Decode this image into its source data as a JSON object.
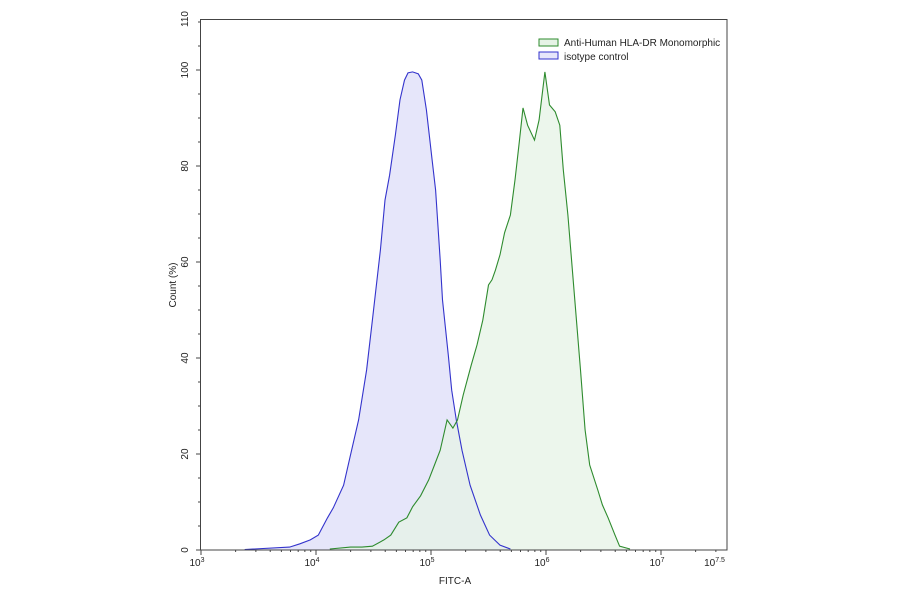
{
  "chart_data": {
    "type": "area",
    "title": "",
    "xlabel": "FITC-A",
    "ylabel": "Count (%)",
    "xscale": "log",
    "xlim_log10": [
      3,
      7.5
    ],
    "ylim": [
      0,
      110
    ],
    "x_ticks": [
      {
        "label_base": "10",
        "label_exp": "3",
        "log10": 3
      },
      {
        "label_base": "10",
        "label_exp": "4",
        "log10": 4
      },
      {
        "label_base": "10",
        "label_exp": "5",
        "log10": 5
      },
      {
        "label_base": "10",
        "label_exp": "6",
        "log10": 6
      },
      {
        "label_base": "10",
        "label_exp": "7",
        "log10": 7
      },
      {
        "label_base": "10",
        "label_exp": "7.5",
        "log10": 7.5
      }
    ],
    "y_ticks": [
      0,
      20,
      40,
      60,
      80,
      100,
      110
    ],
    "grid": false,
    "legend_position": "top-right",
    "series": [
      {
        "name": "Anti-Human HLA-DR Monomorphic",
        "line_color": "#2e8b2e",
        "fill_color": "#e6f3e6",
        "points_log10x_count": [
          [
            4.12,
            0.2
          ],
          [
            4.3,
            0.6
          ],
          [
            4.4,
            0.6
          ],
          [
            4.49,
            0.8
          ],
          [
            4.59,
            2.1
          ],
          [
            4.65,
            3.1
          ],
          [
            4.72,
            5.8
          ],
          [
            4.79,
            6.7
          ],
          [
            4.84,
            9.0
          ],
          [
            4.91,
            11.3
          ],
          [
            4.98,
            14.6
          ],
          [
            5.03,
            17.7
          ],
          [
            5.08,
            20.8
          ],
          [
            5.14,
            27.1
          ],
          [
            5.19,
            25.4
          ],
          [
            5.23,
            27.1
          ],
          [
            5.28,
            32.3
          ],
          [
            5.35,
            38.5
          ],
          [
            5.4,
            42.7
          ],
          [
            5.45,
            47.9
          ],
          [
            5.5,
            55.2
          ],
          [
            5.53,
            56.3
          ],
          [
            5.56,
            58.3
          ],
          [
            5.6,
            61.5
          ],
          [
            5.64,
            66.1
          ],
          [
            5.69,
            69.8
          ],
          [
            5.73,
            77.1
          ],
          [
            5.77,
            85.4
          ],
          [
            5.8,
            92.1
          ],
          [
            5.84,
            88.5
          ],
          [
            5.9,
            85.4
          ],
          [
            5.94,
            89.6
          ],
          [
            5.99,
            99.6
          ],
          [
            6.03,
            92.7
          ],
          [
            6.08,
            91.3
          ],
          [
            6.12,
            88.5
          ],
          [
            6.15,
            79.2
          ],
          [
            6.19,
            69.8
          ],
          [
            6.25,
            52.1
          ],
          [
            6.3,
            37.5
          ],
          [
            6.34,
            25.0
          ],
          [
            6.38,
            17.7
          ],
          [
            6.45,
            12.5
          ],
          [
            6.49,
            9.4
          ],
          [
            6.54,
            6.7
          ],
          [
            6.6,
            3.1
          ],
          [
            6.64,
            0.8
          ],
          [
            6.73,
            0.2
          ]
        ]
      },
      {
        "name": "isotype control",
        "line_color": "#3333cc",
        "fill_color": "#e6e6fa",
        "points_log10x_count": [
          [
            3.38,
            0.1
          ],
          [
            3.77,
            0.6
          ],
          [
            3.86,
            1.3
          ],
          [
            3.95,
            2.1
          ],
          [
            4.02,
            3.1
          ],
          [
            4.1,
            6.7
          ],
          [
            4.15,
            8.8
          ],
          [
            4.24,
            13.5
          ],
          [
            4.3,
            19.8
          ],
          [
            4.37,
            27.1
          ],
          [
            4.44,
            37.5
          ],
          [
            4.49,
            47.9
          ],
          [
            4.56,
            62.5
          ],
          [
            4.6,
            72.9
          ],
          [
            4.64,
            78.1
          ],
          [
            4.69,
            86.5
          ],
          [
            4.73,
            93.8
          ],
          [
            4.77,
            97.9
          ],
          [
            4.8,
            99.4
          ],
          [
            4.84,
            99.6
          ],
          [
            4.89,
            99.2
          ],
          [
            4.92,
            97.9
          ],
          [
            4.96,
            91.7
          ],
          [
            5.01,
            81.3
          ],
          [
            5.04,
            75.0
          ],
          [
            5.08,
            60.4
          ],
          [
            5.1,
            52.1
          ],
          [
            5.15,
            40.6
          ],
          [
            5.18,
            33.3
          ],
          [
            5.22,
            27.1
          ],
          [
            5.27,
            20.8
          ],
          [
            5.34,
            13.5
          ],
          [
            5.43,
            7.3
          ],
          [
            5.51,
            3.1
          ],
          [
            5.6,
            1.0
          ],
          [
            5.69,
            0.2
          ]
        ]
      }
    ]
  }
}
